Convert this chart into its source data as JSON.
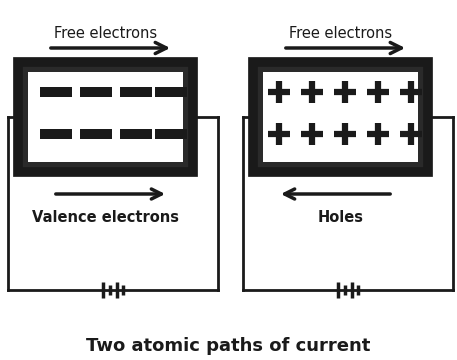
{
  "title": "Two atomic paths of current",
  "title_fontsize": 13,
  "title_fontweight": "bold",
  "bg_color": "#ffffff",
  "dark_color": "#1a1a1a",
  "left_label_top": "Free electrons",
  "left_label_bottom": "Valence electrons",
  "right_label_top": "Free electrons",
  "right_label_bottom": "Holes",
  "figsize": [
    4.57,
    3.6
  ],
  "dpi": 100
}
